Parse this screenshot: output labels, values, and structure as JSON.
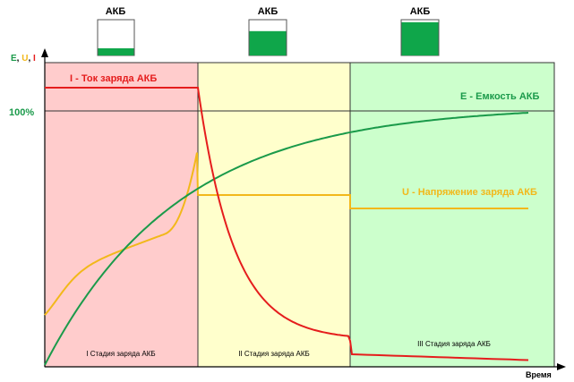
{
  "battery": {
    "label": "АКБ",
    "levels": [
      0.2,
      0.68,
      0.93
    ],
    "fill_color": "#0fa64a"
  },
  "axes": {
    "y_label": {
      "e": "E",
      "sep1": ", ",
      "u": "U",
      "sep2": ", ",
      "i": "I"
    },
    "x_label": "Время",
    "hundred_percent": "100%"
  },
  "stages": [
    {
      "name": "I Стадия заряда АКБ",
      "color": "#ffcccc"
    },
    {
      "name": "II Стадия заряда АКБ",
      "color": "#ffffcc"
    },
    {
      "name": "III Стадия заряда АКБ",
      "color": "#ccffcc"
    }
  ],
  "series": {
    "current": {
      "name": "I - Ток заряда АКБ",
      "color": "#e51d1d"
    },
    "capacity": {
      "name": "E - Емкость АКБ",
      "color": "#1a9a4a"
    },
    "voltage": {
      "name": "U - Напряжение заряда АКБ",
      "color": "#f2b81a"
    }
  },
  "colors": {
    "e_letter": "#1a9a4a",
    "u_letter": "#f2b81a",
    "i_letter": "#e51d1d",
    "capacity_label": "#1a9a4a",
    "voltage_label": "#f2b81a"
  }
}
